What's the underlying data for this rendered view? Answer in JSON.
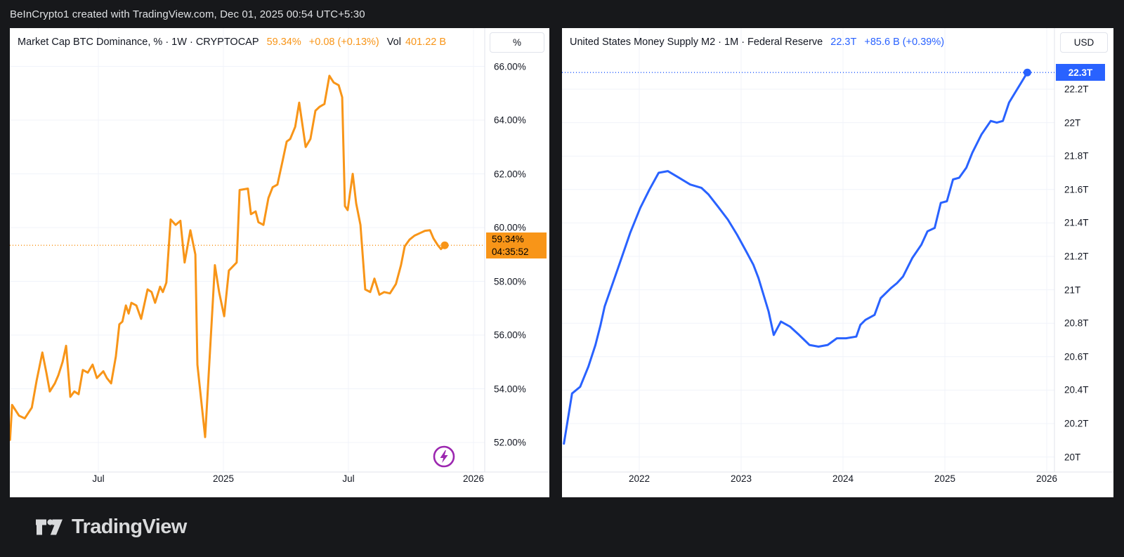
{
  "top_bar": {
    "text": "BeInCrypto1 created with TradingView.com, Dec 01, 2025 00:54 UTC+5:30"
  },
  "footer": {
    "brand": "TradingView",
    "logo_icon": "tradingview-logo"
  },
  "colors": {
    "orange": "#F89518",
    "blue": "#2962FF",
    "grid": "#F0F3FA",
    "separator": "#E0E3EB",
    "title_text": "#131722",
    "purple": "#9C27B0",
    "dark_bg": "#17181B"
  },
  "left_chart": {
    "title": "Market Cap BTC Dominance, % · 1W · CRYPTOCAP",
    "last_value": "59.34%",
    "change": "+0.08 (+0.13%)",
    "vol_label": "Vol",
    "vol_value": "401.22 B",
    "axis_button": "%",
    "price_badge": {
      "value": "59.34%",
      "countdown": "04:35:52"
    },
    "flash_icon": "flash-icon"
  },
  "right_chart": {
    "title": "United States Money Supply M2 · 1M · Federal Reserve",
    "last_value": "22.3T",
    "change": "+85.6 B (+0.39%)",
    "axis_button": "USD",
    "price_badge": {
      "value": "22.3T"
    }
  },
  "chart_data": [
    {
      "type": "line",
      "panel_key": "left",
      "title": "Market Cap BTC Dominance, % · 1W · CRYPTOCAP",
      "timeframe": "1W",
      "unit": "%",
      "color": "#F89518",
      "last_value": 59.34,
      "level_line": 59.34,
      "ylim": [
        51.5,
        66.8
      ],
      "grid": true,
      "y_ticks": [
        {
          "label": "66.00%",
          "value": 66
        },
        {
          "label": "64.00%",
          "value": 64
        },
        {
          "label": "62.00%",
          "value": 62
        },
        {
          "label": "60.00%",
          "value": 60
        },
        {
          "label": "58.00%",
          "value": 58
        },
        {
          "label": "56.00%",
          "value": 56
        },
        {
          "label": "54.00%",
          "value": 54
        },
        {
          "label": "52.00%",
          "value": 52
        }
      ],
      "x_ticks": [
        {
          "label": "Jul",
          "year": 2024.5
        },
        {
          "label": "2025",
          "year": 2025.0
        },
        {
          "label": "Jul",
          "year": 2025.5
        },
        {
          "label": "2026",
          "year": 2026.0
        }
      ],
      "points": [
        [
          2024.147,
          52.1
        ],
        [
          2024.155,
          53.4
        ],
        [
          2024.183,
          53.0
        ],
        [
          2024.206,
          52.9
        ],
        [
          2024.234,
          53.3
        ],
        [
          2024.253,
          54.3
        ],
        [
          2024.276,
          55.35
        ],
        [
          2024.292,
          54.6
        ],
        [
          2024.306,
          53.9
        ],
        [
          2024.326,
          54.2
        ],
        [
          2024.34,
          54.5
        ],
        [
          2024.357,
          55.0
        ],
        [
          2024.371,
          55.6
        ],
        [
          2024.388,
          53.7
        ],
        [
          2024.404,
          53.9
        ],
        [
          2024.421,
          53.8
        ],
        [
          2024.438,
          54.7
        ],
        [
          2024.458,
          54.6
        ],
        [
          2024.477,
          54.9
        ],
        [
          2024.494,
          54.4
        ],
        [
          2024.52,
          54.65
        ],
        [
          2024.534,
          54.4
        ],
        [
          2024.551,
          54.2
        ],
        [
          2024.57,
          55.2
        ],
        [
          2024.584,
          56.4
        ],
        [
          2024.596,
          56.5
        ],
        [
          2024.61,
          57.1
        ],
        [
          2024.621,
          56.8
        ],
        [
          2024.632,
          57.2
        ],
        [
          2024.652,
          57.1
        ],
        [
          2024.671,
          56.6
        ],
        [
          2024.697,
          57.7
        ],
        [
          2024.713,
          57.6
        ],
        [
          2024.727,
          57.2
        ],
        [
          2024.747,
          57.8
        ],
        [
          2024.758,
          57.6
        ],
        [
          2024.772,
          57.95
        ],
        [
          2024.789,
          60.3
        ],
        [
          2024.809,
          60.1
        ],
        [
          2024.828,
          60.25
        ],
        [
          2024.845,
          58.7
        ],
        [
          2024.868,
          59.9
        ],
        [
          2024.888,
          59.0
        ],
        [
          2024.896,
          54.9
        ],
        [
          2024.927,
          52.2
        ],
        [
          2024.966,
          58.6
        ],
        [
          2024.983,
          57.6
        ],
        [
          2025.003,
          56.7
        ],
        [
          2025.022,
          58.4
        ],
        [
          2025.053,
          58.7
        ],
        [
          2025.065,
          61.4
        ],
        [
          2025.098,
          61.45
        ],
        [
          2025.11,
          60.5
        ],
        [
          2025.129,
          60.6
        ],
        [
          2025.14,
          60.2
        ],
        [
          2025.16,
          60.1
        ],
        [
          2025.18,
          61.1
        ],
        [
          2025.197,
          61.5
        ],
        [
          2025.216,
          61.6
        ],
        [
          2025.236,
          62.45
        ],
        [
          2025.253,
          63.2
        ],
        [
          2025.267,
          63.3
        ],
        [
          2025.287,
          63.75
        ],
        [
          2025.303,
          64.65
        ],
        [
          2025.329,
          63.0
        ],
        [
          2025.348,
          63.3
        ],
        [
          2025.368,
          64.35
        ],
        [
          2025.385,
          64.5
        ],
        [
          2025.404,
          64.6
        ],
        [
          2025.424,
          65.65
        ],
        [
          2025.441,
          65.4
        ],
        [
          2025.461,
          65.3
        ],
        [
          2025.475,
          64.85
        ],
        [
          2025.486,
          60.8
        ],
        [
          2025.497,
          60.65
        ],
        [
          2025.517,
          62.0
        ],
        [
          2025.531,
          60.9
        ],
        [
          2025.548,
          60.1
        ],
        [
          2025.567,
          57.7
        ],
        [
          2025.587,
          57.6
        ],
        [
          2025.604,
          58.1
        ],
        [
          2025.624,
          57.5
        ],
        [
          2025.643,
          57.6
        ],
        [
          2025.666,
          57.55
        ],
        [
          2025.69,
          57.9
        ],
        [
          2025.71,
          58.6
        ],
        [
          2025.725,
          59.3
        ],
        [
          2025.744,
          59.55
        ],
        [
          2025.764,
          59.7
        ],
        [
          2025.787,
          59.8
        ],
        [
          2025.806,
          59.88
        ],
        [
          2025.826,
          59.9
        ],
        [
          2025.84,
          59.6
        ],
        [
          2025.857,
          59.35
        ],
        [
          2025.87,
          59.2
        ],
        [
          2025.885,
          59.34
        ]
      ]
    },
    {
      "type": "line",
      "panel_key": "right",
      "title": "United States Money Supply M2 · 1M · Federal Reserve",
      "timeframe": "1M",
      "unit": "USD",
      "color": "#2962FF",
      "last_value": 22.3,
      "level_line": 22.3,
      "ylim": [
        19.9,
        22.45
      ],
      "grid": true,
      "y_ticks": [
        {
          "label": "22.2T",
          "value": 22.2
        },
        {
          "label": "22T",
          "value": 22.0
        },
        {
          "label": "21.8T",
          "value": 21.8
        },
        {
          "label": "21.6T",
          "value": 21.6
        },
        {
          "label": "21.4T",
          "value": 21.4
        },
        {
          "label": "21.2T",
          "value": 21.2
        },
        {
          "label": "21T",
          "value": 21.0
        },
        {
          "label": "20.8T",
          "value": 20.8
        },
        {
          "label": "20.6T",
          "value": 20.6
        },
        {
          "label": "20.4T",
          "value": 20.4
        },
        {
          "label": "20.2T",
          "value": 20.2
        },
        {
          "label": "20T",
          "value": 20.0
        }
      ],
      "x_ticks": [
        {
          "label": "2022",
          "year": 2022
        },
        {
          "label": "2023",
          "year": 2023
        },
        {
          "label": "2024",
          "year": 2024
        },
        {
          "label": "2025",
          "year": 2025
        },
        {
          "label": "2026",
          "year": 2026
        }
      ],
      "points": [
        [
          2021.26,
          20.08
        ],
        [
          2021.34,
          20.38
        ],
        [
          2021.42,
          20.42
        ],
        [
          2021.5,
          20.54
        ],
        [
          2021.57,
          20.67
        ],
        [
          2021.62,
          20.79
        ],
        [
          2021.66,
          20.9
        ],
        [
          2021.74,
          21.04
        ],
        [
          2021.82,
          21.18
        ],
        [
          2021.91,
          21.34
        ],
        [
          2022.01,
          21.49
        ],
        [
          2022.1,
          21.6
        ],
        [
          2022.19,
          21.7
        ],
        [
          2022.28,
          21.71
        ],
        [
          2022.39,
          21.67
        ],
        [
          2022.5,
          21.63
        ],
        [
          2022.61,
          21.61
        ],
        [
          2022.68,
          21.57
        ],
        [
          2022.77,
          21.5
        ],
        [
          2022.87,
          21.42
        ],
        [
          2022.96,
          21.33
        ],
        [
          2023.05,
          21.23
        ],
        [
          2023.12,
          21.15
        ],
        [
          2023.17,
          21.07
        ],
        [
          2023.27,
          20.87
        ],
        [
          2023.32,
          20.73
        ],
        [
          2023.39,
          20.81
        ],
        [
          2023.48,
          20.78
        ],
        [
          2023.57,
          20.73
        ],
        [
          2023.67,
          20.67
        ],
        [
          2023.76,
          20.66
        ],
        [
          2023.85,
          20.67
        ],
        [
          2023.94,
          20.71
        ],
        [
          2024.03,
          20.71
        ],
        [
          2024.13,
          20.72
        ],
        [
          2024.17,
          20.79
        ],
        [
          2024.22,
          20.82
        ],
        [
          2024.31,
          20.85
        ],
        [
          2024.37,
          20.95
        ],
        [
          2024.47,
          21.01
        ],
        [
          2024.53,
          21.04
        ],
        [
          2024.59,
          21.08
        ],
        [
          2024.68,
          21.19
        ],
        [
          2024.77,
          21.27
        ],
        [
          2024.83,
          21.35
        ],
        [
          2024.9,
          21.37
        ],
        [
          2024.96,
          21.52
        ],
        [
          2025.02,
          21.53
        ],
        [
          2025.08,
          21.66
        ],
        [
          2025.14,
          21.67
        ],
        [
          2025.21,
          21.73
        ],
        [
          2025.27,
          21.82
        ],
        [
          2025.36,
          21.93
        ],
        [
          2025.45,
          22.01
        ],
        [
          2025.51,
          22.0
        ],
        [
          2025.57,
          22.01
        ],
        [
          2025.63,
          22.12
        ],
        [
          2025.7,
          22.19
        ],
        [
          2025.76,
          22.25
        ],
        [
          2025.81,
          22.3
        ]
      ]
    }
  ]
}
